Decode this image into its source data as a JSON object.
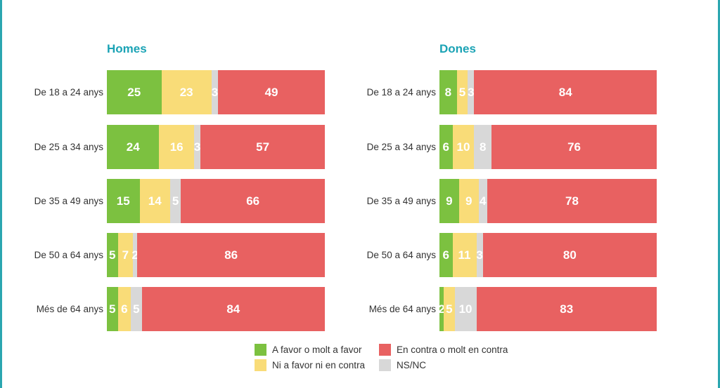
{
  "colors": {
    "favor": "#7cc140",
    "neutral": "#f9dc78",
    "nsnc": "#d8d8d8",
    "contra": "#e86161",
    "title": "#1ba3b5",
    "frame": "#2aa6b0"
  },
  "chart_data": [
    {
      "type": "bar",
      "orientation": "horizontal",
      "stacked": true,
      "title": "Homes",
      "categories": [
        "De 18 a 24 anys",
        "De 25 a 34 anys",
        "De 35 a 49 anys",
        "De 50 a 64 anys",
        "Més de 64 anys"
      ],
      "series": [
        {
          "name": "A favor o molt a favor",
          "color_key": "favor",
          "values": [
            25,
            24,
            15,
            5,
            5
          ]
        },
        {
          "name": "Ni a favor ni en contra",
          "color_key": "neutral",
          "values": [
            23,
            16,
            14,
            7,
            6
          ]
        },
        {
          "name": "NS/NC",
          "color_key": "nsnc",
          "values": [
            3,
            3,
            5,
            2,
            5
          ]
        },
        {
          "name": "En contra o molt en contra",
          "color_key": "contra",
          "values": [
            49,
            57,
            66,
            86,
            84
          ]
        }
      ]
    },
    {
      "type": "bar",
      "orientation": "horizontal",
      "stacked": true,
      "title": "Dones",
      "categories": [
        "De 18 a 24 anys",
        "De 25 a 34 anys",
        "De 35 a 49 anys",
        "De 50 a 64 anys",
        "Més de 64 anys"
      ],
      "series": [
        {
          "name": "A favor o molt a favor",
          "color_key": "favor",
          "values": [
            8,
            6,
            9,
            6,
            2
          ]
        },
        {
          "name": "Ni a favor ni en contra",
          "color_key": "neutral",
          "values": [
            5,
            10,
            9,
            11,
            5
          ]
        },
        {
          "name": "NS/NC",
          "color_key": "nsnc",
          "values": [
            3,
            8,
            4,
            3,
            10
          ]
        },
        {
          "name": "En contra o molt en contra",
          "color_key": "contra",
          "values": [
            84,
            76,
            78,
            80,
            83
          ]
        }
      ]
    }
  ],
  "legend": [
    {
      "label": "A favor o molt a favor",
      "color_key": "favor"
    },
    {
      "label": "En contra o molt en contra",
      "color_key": "contra"
    },
    {
      "label": "Ni a favor ni en contra",
      "color_key": "neutral"
    },
    {
      "label": "NS/NC",
      "color_key": "nsnc"
    }
  ]
}
